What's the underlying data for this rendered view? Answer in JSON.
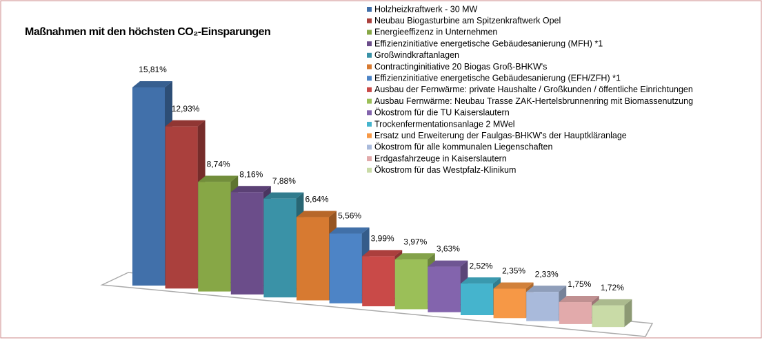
{
  "chart_data": {
    "type": "bar3d",
    "title": "Maßnahmen mit den höchsten CO₂-Einsparungen",
    "categories": [
      "Holzheizkraftwerk - 30 MW",
      "Neubau Biogasturbine am Spitzenkraftwerk Opel",
      "Energieeffizenz in Unternehmen",
      "Effizienzinitiative energetische Gebäudesanierung (MFH) *1",
      "Großwindkraftanlagen",
      "Contractinginitiative 20 Biogas Groß-BHKW's",
      "Effizienzinitiative energetische Gebäudesanierung (EFH/ZFH) *1",
      "Ausbau der Fernwärme: private Haushalte / Großkunden / öffentliche Einrichtungen",
      "Ausbau Fernwärme: Neubau Trasse ZAK-Hertelsbrunnenring mit Biomassenutzung",
      "Ökostrom für die TU Kaiserslautern",
      "Trockenfermentationsanlage 2 MWel",
      "Ersatz und Erweiterung der Faulgas-BHKW's der Hauptkläranlage",
      "Ökostrom für alle kommunalen Liegenschaften",
      "Erdgasfahrzeuge in Kaiserslautern",
      "Ökostrom für das Westpfalz-Klinikum"
    ],
    "values": [
      15.81,
      12.93,
      8.74,
      8.16,
      7.88,
      6.64,
      5.56,
      3.99,
      3.97,
      3.63,
      2.52,
      2.35,
      2.33,
      1.75,
      1.72
    ],
    "value_labels": [
      "15,81%",
      "12,93%",
      "8,74%",
      "8,16%",
      "7,88%",
      "6,64%",
      "5,56%",
      "3,99%",
      "3,97%",
      "3,63%",
      "2,52%",
      "2,35%",
      "2,33%",
      "1,75%",
      "1,72%"
    ],
    "colors": [
      "#4170aa",
      "#aa403d",
      "#87a746",
      "#6b4d8a",
      "#3a92a7",
      "#d77a31",
      "#4d84c6",
      "#c94a48",
      "#9bbf58",
      "#8364ad",
      "#45b4cd",
      "#f69846",
      "#a9badb",
      "#e2aaab",
      "#c9dba7"
    ],
    "legend": "right"
  }
}
